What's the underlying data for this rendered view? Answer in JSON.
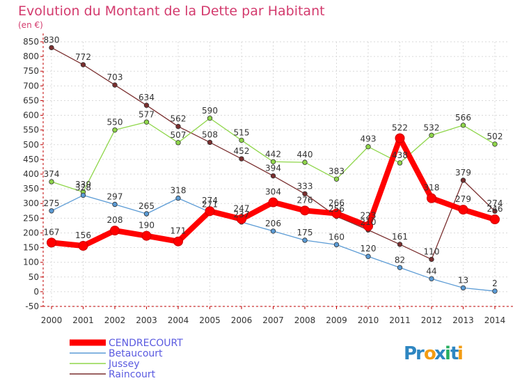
{
  "chart_data": {
    "type": "line",
    "title": "Evolution du Montant de la Dette par Habitant",
    "subtitle": "(en €)",
    "x": [
      "2000",
      "2001",
      "2002",
      "2003",
      "2004",
      "2005",
      "2006",
      "2007",
      "2008",
      "2009",
      "2010",
      "2011",
      "2012",
      "2013",
      "2014"
    ],
    "ylim": [
      -50,
      850
    ],
    "yticks": [
      -50,
      0,
      50,
      100,
      150,
      200,
      250,
      300,
      350,
      400,
      450,
      500,
      550,
      600,
      650,
      700,
      750,
      800,
      850
    ],
    "grid": true,
    "legend_position": "bottom-left",
    "series": [
      {
        "name": "CENDRECOURT",
        "color": "#ff0000",
        "values": [
          167,
          156,
          208,
          190,
          171,
          274,
          247,
          304,
          276,
          266,
          223,
          522,
          318,
          279,
          246
        ]
      },
      {
        "name": "Betaucourt",
        "color": "#5b9bd5",
        "values": [
          275,
          328,
          297,
          265,
          318,
          271,
          237,
          206,
          175,
          160,
          120,
          82,
          44,
          13,
          2
        ]
      },
      {
        "name": "Jussey",
        "color": "#8fd64a",
        "values": [
          374,
          339,
          550,
          577,
          507,
          590,
          515,
          442,
          440,
          383,
          493,
          438,
          532,
          566,
          502
        ]
      },
      {
        "name": "Raincourt",
        "color": "#7a2f2f",
        "values": [
          830,
          772,
          703,
          634,
          562,
          508,
          452,
          394,
          333,
          256,
          210,
          161,
          110,
          379,
          274
        ]
      }
    ]
  },
  "logo": {
    "text": "Proxiti",
    "letters": [
      "P",
      "r",
      "o",
      "x",
      "i",
      "t",
      "i"
    ],
    "colors": [
      "#2e86c1",
      "#2e86c1",
      "#f39c12",
      "#2e86c1",
      "#27ae60",
      "#2e86c1",
      "#f39c12"
    ]
  }
}
